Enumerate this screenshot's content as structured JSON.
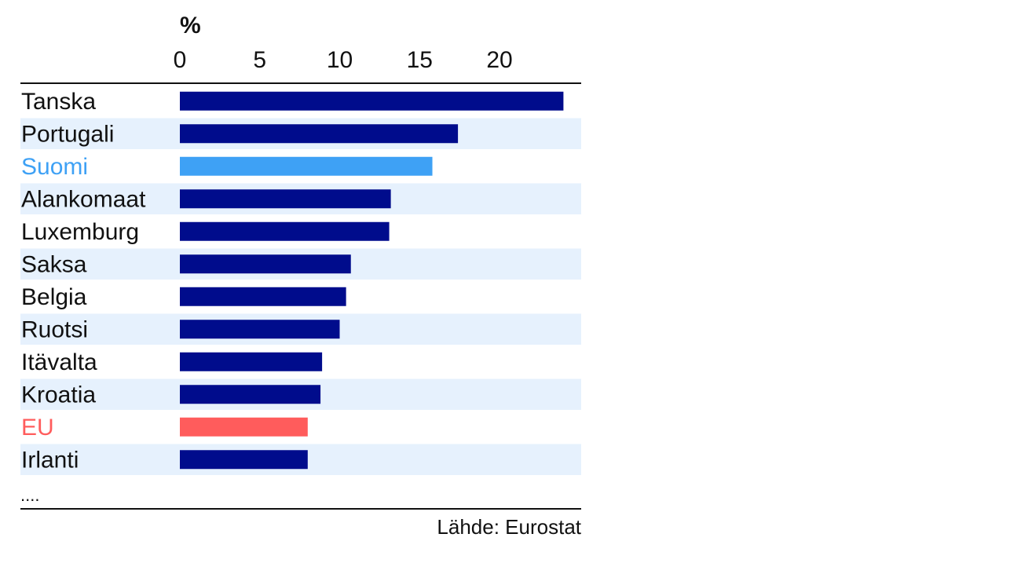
{
  "chart_data": {
    "type": "bar",
    "orientation": "horizontal",
    "unit": "%",
    "categories": [
      "Tanska",
      "Portugali",
      "Suomi",
      "Alankomaat",
      "Luxemburg",
      "Saksa",
      "Belgia",
      "Ruotsi",
      "Itävalta",
      "Kroatia",
      "EU",
      "Irlanti"
    ],
    "values": [
      24.0,
      17.4,
      15.8,
      13.2,
      13.1,
      10.7,
      10.4,
      10.0,
      8.9,
      8.8,
      8.0,
      8.0
    ],
    "ticks": [
      "0",
      "5",
      "10",
      "15",
      "20"
    ],
    "xlim": [
      0,
      25
    ],
    "ellipsis": "....",
    "source": "Lähde: Eurostat",
    "colors": {
      "default_bar": "#000c8c",
      "highlight_bar": "#3ea1f5",
      "eu_bar": "#ff5c5c",
      "highlight_text": "#3ea1f5",
      "eu_text": "#ff5c5c",
      "text": "#111111",
      "row_band": "#e6f1fd",
      "axis": "#111111"
    },
    "highlights": {
      "Suomi": "highlight",
      "EU": "eu"
    }
  }
}
